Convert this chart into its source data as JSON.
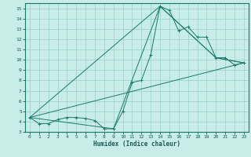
{
  "xlabel": "Humidex (Indice chaleur)",
  "bg_color": "#c8ece8",
  "grid_color": "#a0d4ce",
  "line_color": "#1a7a6a",
  "spine_color": "#1a7a6a",
  "tick_color": "#1a5a55",
  "xlim": [
    -0.5,
    23.5
  ],
  "ylim": [
    3,
    15.5
  ],
  "xticks": [
    0,
    1,
    2,
    3,
    4,
    5,
    6,
    7,
    8,
    9,
    10,
    11,
    12,
    13,
    14,
    15,
    16,
    17,
    18,
    19,
    20,
    21,
    22,
    23
  ],
  "yticks": [
    3,
    4,
    5,
    6,
    7,
    8,
    9,
    10,
    11,
    12,
    13,
    14,
    15
  ],
  "series": [
    {
      "x": [
        0,
        1,
        2,
        3,
        4,
        5,
        6,
        7,
        8,
        9,
        10,
        11,
        12,
        13,
        14,
        15,
        16,
        17,
        18,
        19,
        20,
        21,
        22,
        23
      ],
      "y": [
        4.4,
        3.8,
        3.8,
        4.2,
        4.4,
        4.4,
        4.3,
        4.1,
        3.3,
        3.3,
        5.0,
        7.8,
        8.0,
        10.5,
        15.2,
        14.8,
        12.8,
        13.2,
        12.2,
        12.2,
        10.2,
        10.2,
        9.5,
        9.7
      ],
      "marker": true
    },
    {
      "x": [
        0,
        23
      ],
      "y": [
        4.4,
        9.7
      ],
      "marker": false
    },
    {
      "x": [
        0,
        14,
        20,
        23
      ],
      "y": [
        4.4,
        15.2,
        10.2,
        9.7
      ],
      "marker": false
    },
    {
      "x": [
        0,
        9,
        14,
        20,
        23
      ],
      "y": [
        4.4,
        3.3,
        15.2,
        10.2,
        9.7
      ],
      "marker": false
    }
  ]
}
